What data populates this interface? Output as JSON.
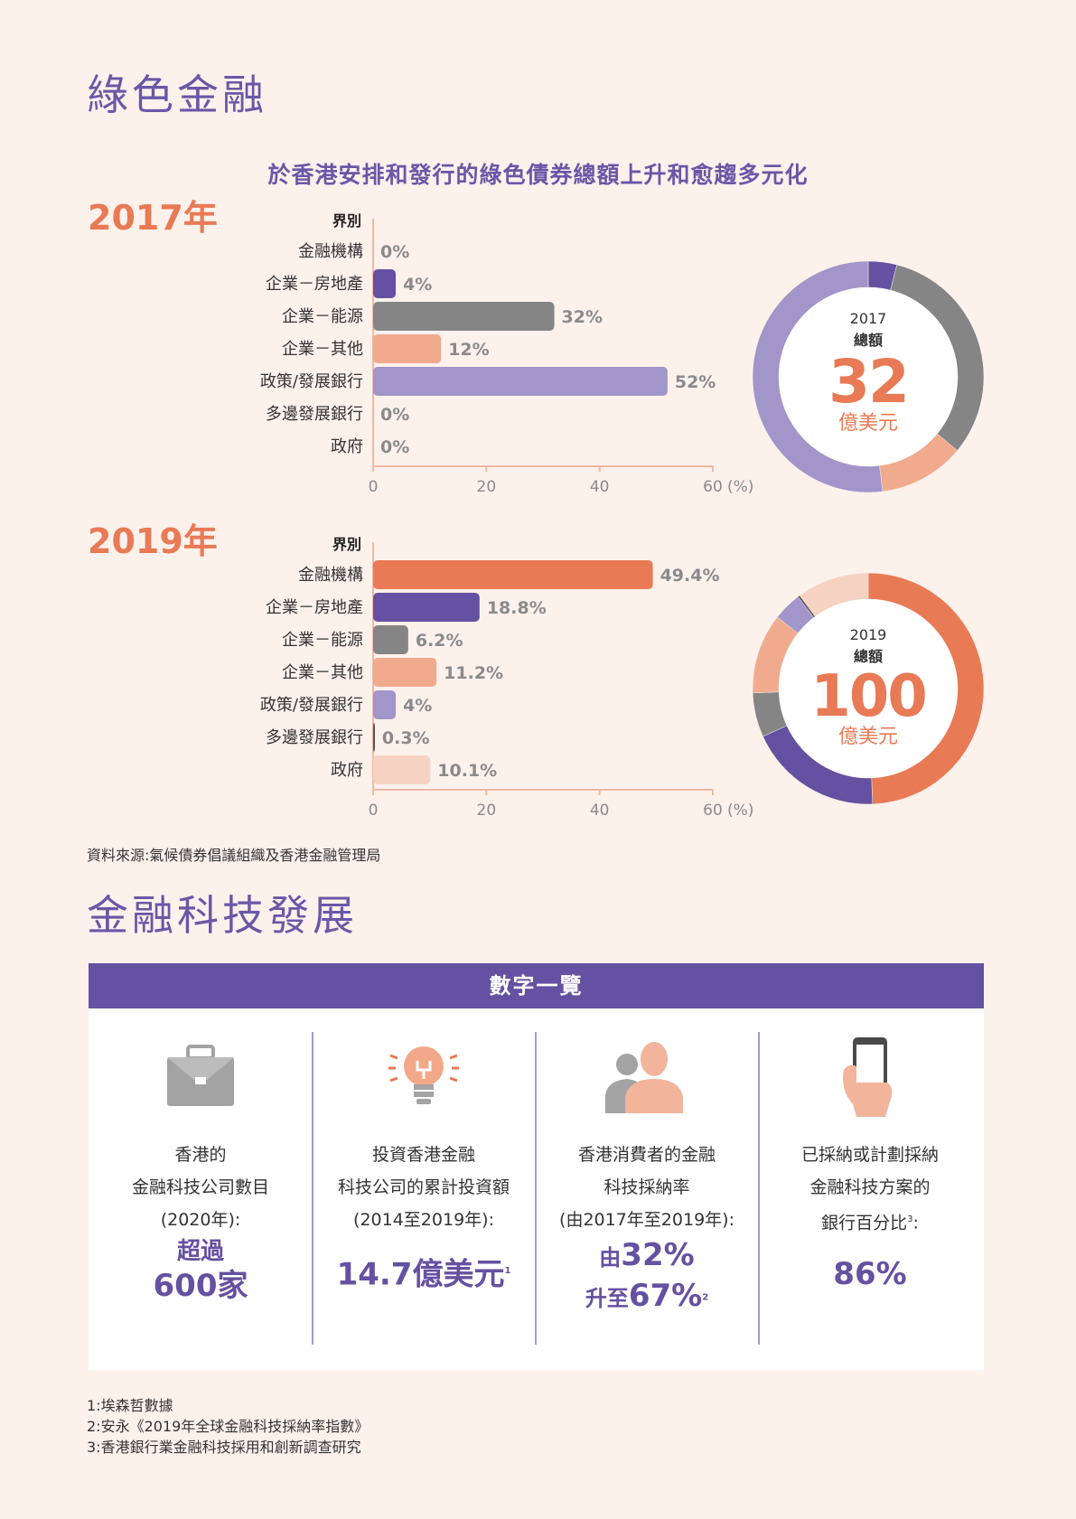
{
  "green_finance": {
    "title": "綠色金融",
    "chart_heading": "於香港安排和發行的綠色債券總額上升和愈趨多元化",
    "source": "資料來源:氣候債券倡議組織及香港金融管理局"
  },
  "chart_data": [
    {
      "type": "bar",
      "orientation": "horizontal",
      "year_label": "2017年",
      "category_header": "界別",
      "categories": [
        "金融機構",
        "企業－房地產",
        "企業－能源",
        "企業－其他",
        "政策/發展銀行",
        "多邊發展銀行",
        "政府"
      ],
      "values": [
        0,
        4,
        32,
        12,
        52,
        0,
        0
      ],
      "value_labels": [
        "0%",
        "4%",
        "32%",
        "12%",
        "52%",
        "0%",
        "0%"
      ],
      "colors": [
        "#e87a55",
        "#6451a1",
        "#858585",
        "#f0ab8e",
        "#a295c9",
        "#555555",
        "#f6d2c3"
      ],
      "xlim": [
        0,
        60
      ],
      "xticks": [
        "0",
        "20",
        "40",
        "60"
      ],
      "unit": "(%)"
    },
    {
      "type": "pie",
      "variant": "donut",
      "center_year": "2017",
      "center_label": "總額",
      "center_value": "32",
      "center_unit": "億美元",
      "slices": [
        {
          "category": "企業－房地產",
          "value": 4,
          "color": "#6451a1"
        },
        {
          "category": "企業－能源",
          "value": 32,
          "color": "#858585"
        },
        {
          "category": "企業－其他",
          "value": 12,
          "color": "#f0ab8e"
        },
        {
          "category": "政策/發展銀行",
          "value": 52,
          "color": "#a295c9"
        }
      ]
    },
    {
      "type": "bar",
      "orientation": "horizontal",
      "year_label": "2019年",
      "category_header": "界別",
      "categories": [
        "金融機構",
        "企業－房地產",
        "企業－能源",
        "企業－其他",
        "政策/發展銀行",
        "多邊發展銀行",
        "政府"
      ],
      "values": [
        49.4,
        18.8,
        6.2,
        11.2,
        4,
        0.3,
        10.1
      ],
      "value_labels": [
        "49.4%",
        "18.8%",
        "6.2%",
        "11.2%",
        "4%",
        "0.3%",
        "10.1%"
      ],
      "colors": [
        "#e87a55",
        "#6451a1",
        "#858585",
        "#f0ab8e",
        "#a295c9",
        "#555555",
        "#f6d2c3"
      ],
      "xlim": [
        0,
        60
      ],
      "xticks": [
        "0",
        "20",
        "40",
        "60"
      ],
      "unit": "(%)"
    },
    {
      "type": "pie",
      "variant": "donut",
      "center_year": "2019",
      "center_label": "總額",
      "center_value": "100",
      "center_unit": "億美元",
      "slices": [
        {
          "category": "金融機構",
          "value": 49.4,
          "color": "#e87a55"
        },
        {
          "category": "企業－房地產",
          "value": 18.8,
          "color": "#6451a1"
        },
        {
          "category": "企業－能源",
          "value": 6.2,
          "color": "#858585"
        },
        {
          "category": "企業－其他",
          "value": 11.2,
          "color": "#f0ab8e"
        },
        {
          "category": "政策/發展銀行",
          "value": 4,
          "color": "#a295c9"
        },
        {
          "category": "多邊發展銀行",
          "value": 0.3,
          "color": "#555555"
        },
        {
          "category": "政府",
          "value": 10.1,
          "color": "#f6d2c3"
        }
      ]
    }
  ],
  "fintech": {
    "title": "金融科技發展",
    "panel_title": "數字一覽",
    "icon_color": "#a3a3a3",
    "accent": "#6451a1",
    "columns": [
      {
        "icon": "briefcase-icon",
        "lines": [
          "香港的",
          "金融科技公司數目",
          "(2020年):"
        ],
        "highlight": [
          "超過",
          "600家"
        ]
      },
      {
        "icon": "lightbulb-icon",
        "lines": [
          "投資香港金融",
          "科技公司的累計投資額",
          "(2014至2019年):"
        ],
        "highlight": [
          "14.7億美元"
        ],
        "footnote_mark": "1"
      },
      {
        "icon": "people-icon",
        "lines": [
          "香港消費者的金融",
          "科技採納率",
          "(由2017年至2019年):"
        ],
        "highlight": [
          "由",
          "32%",
          "升至",
          "67%"
        ],
        "footnote_mark": "2"
      },
      {
        "icon": "smartphone-icon",
        "lines": [
          "已採納或計劃採納",
          "金融科技方案的",
          "銀行百分比"
        ],
        "line3_mark": "3",
        "line3_suffix": ":",
        "highlight": [
          "86%"
        ]
      }
    ]
  },
  "footnotes": [
    "1:埃森哲數據",
    "2:安永《2019年全球金融科技採納率指數》",
    "3:香港銀行業金融科技採用和創新調查研究"
  ]
}
